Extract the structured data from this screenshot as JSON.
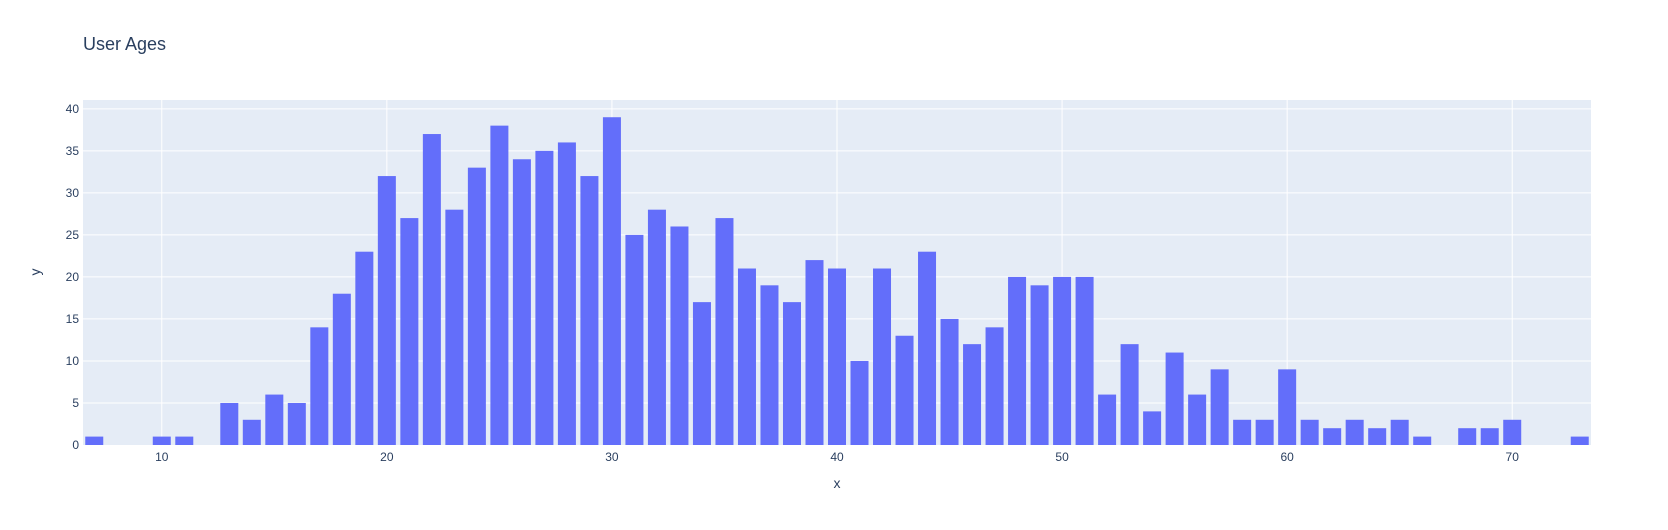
{
  "chart_data": {
    "type": "bar",
    "title": "User Ages",
    "xlabel": "x",
    "ylabel": "y",
    "xlim": [
      6.5,
      73.5
    ],
    "ylim": [
      0,
      41.05
    ],
    "xticks": [
      10,
      20,
      30,
      40,
      50,
      60,
      70
    ],
    "yticks": [
      0,
      5,
      10,
      15,
      20,
      25,
      30,
      35,
      40
    ],
    "grid": true,
    "legend": "none",
    "x": [
      7,
      10,
      11,
      13,
      14,
      15,
      16,
      17,
      18,
      19,
      20,
      21,
      22,
      23,
      24,
      25,
      26,
      27,
      28,
      29,
      30,
      31,
      32,
      33,
      34,
      35,
      36,
      37,
      38,
      39,
      40,
      41,
      42,
      43,
      44,
      45,
      46,
      47,
      48,
      49,
      50,
      51,
      52,
      53,
      54,
      55,
      56,
      57,
      58,
      59,
      60,
      61,
      62,
      63,
      64,
      65,
      66,
      68,
      69,
      70,
      73
    ],
    "values": [
      1,
      1,
      1,
      5,
      3,
      6,
      5,
      14,
      18,
      23,
      32,
      27,
      37,
      28,
      33,
      38,
      34,
      35,
      36,
      32,
      39,
      25,
      28,
      26,
      17,
      27,
      21,
      19,
      17,
      22,
      21,
      10,
      21,
      13,
      23,
      15,
      12,
      14,
      20,
      19,
      20,
      20,
      6,
      12,
      4,
      11,
      6,
      9,
      3,
      3,
      9,
      3,
      2,
      3,
      2,
      3,
      1,
      2,
      2,
      3,
      1
    ]
  },
  "colors": {
    "bar": "#636efa",
    "plot_bg": "#e5ecf6",
    "grid": "#ffffff",
    "text": "#2a3f5f"
  }
}
